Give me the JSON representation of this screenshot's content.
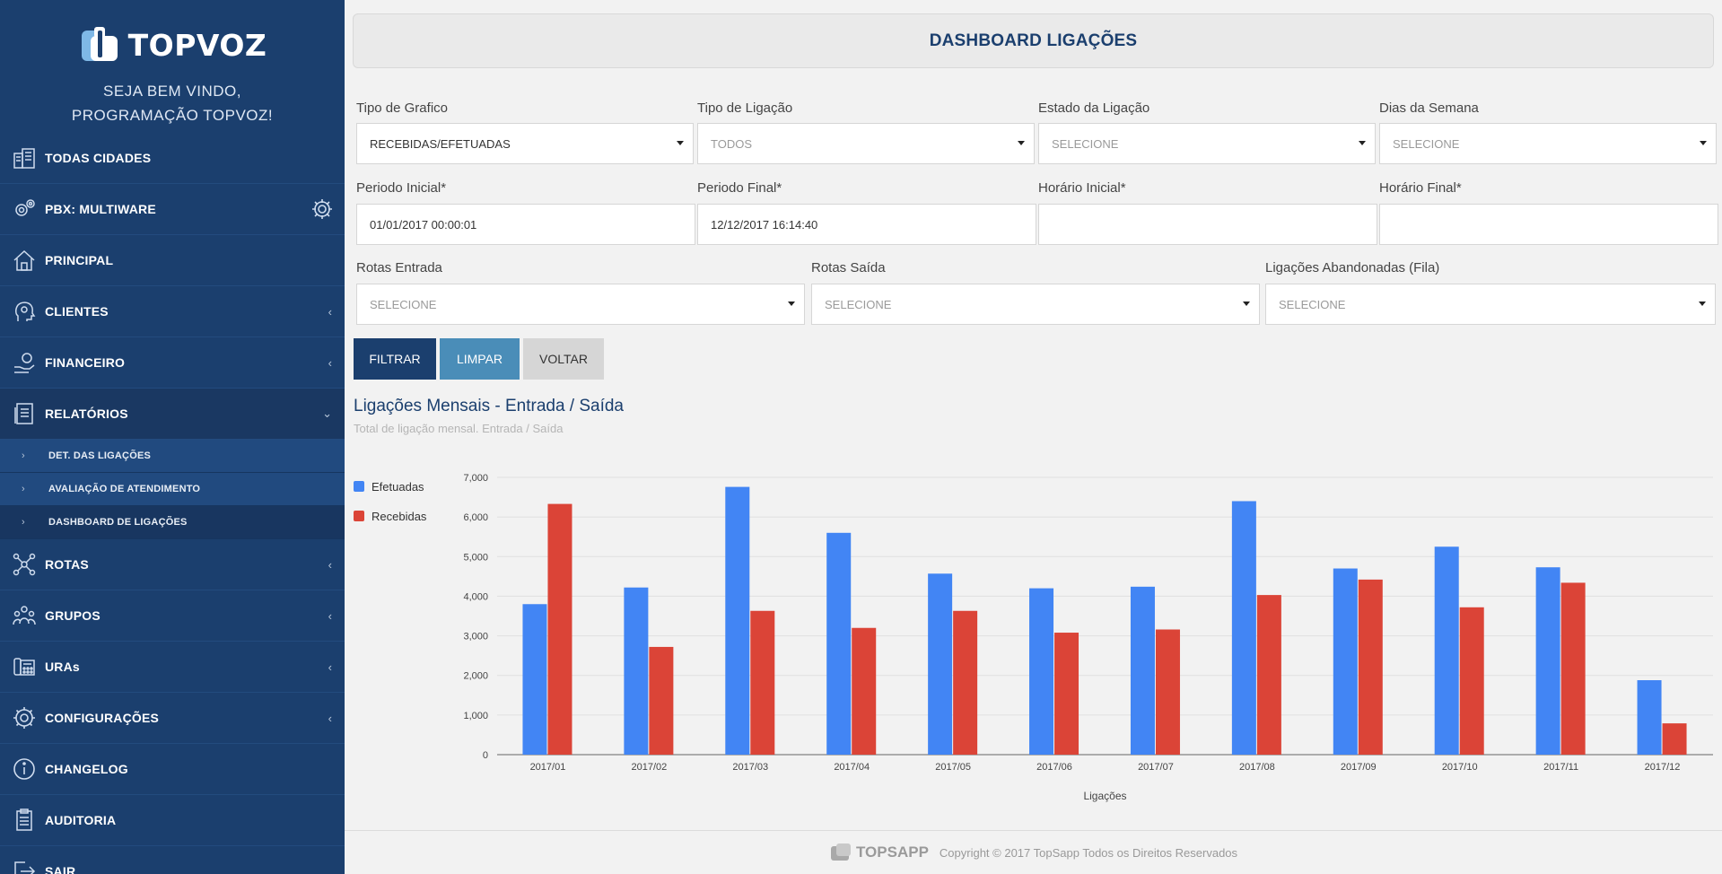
{
  "sidebar": {
    "brand": "TOPVOZ",
    "welcome_line1": "SEJA BEM VINDO,",
    "welcome_line2": "PROGRAMAÇÃO TOPVOZ!",
    "items": [
      {
        "label": "TODAS CIDADES",
        "icon": "city-icon"
      },
      {
        "label": "PBX: MULTIWARE",
        "icon": "gears-icon"
      },
      {
        "label": "PRINCIPAL",
        "icon": "home-icon"
      },
      {
        "label": "CLIENTES",
        "icon": "user-head-icon"
      },
      {
        "label": "FINANCEIRO",
        "icon": "money-hand-icon"
      },
      {
        "label": "RELATÓRIOS",
        "icon": "report-icon"
      },
      {
        "label": "ROTAS",
        "icon": "network-icon"
      },
      {
        "label": "GRUPOS",
        "icon": "group-icon"
      },
      {
        "label": "URAs",
        "icon": "phone-icon"
      },
      {
        "label": "CONFIGURAÇÕES",
        "icon": "gear-icon"
      },
      {
        "label": "CHANGELOG",
        "icon": "info-icon"
      },
      {
        "label": "AUDITORIA",
        "icon": "clipboard-icon"
      },
      {
        "label": "SAIR",
        "icon": "exit-icon"
      }
    ],
    "sub_items": [
      {
        "label": "DET. DAS LIGAÇÕES"
      },
      {
        "label": "AVALIAÇÃO DE ATENDIMENTO"
      },
      {
        "label": "DASHBOARD DE LIGAÇÕES"
      }
    ]
  },
  "header": {
    "title": "DASHBOARD LIGAÇÕES"
  },
  "filters": {
    "tipo_grafico": {
      "label": "Tipo de Grafico",
      "value": "RECEBIDAS/EFETUADAS"
    },
    "tipo_ligacao": {
      "label": "Tipo de Ligação",
      "value": "TODOS"
    },
    "estado_ligacao": {
      "label": "Estado da Ligação",
      "value": "SELECIONE"
    },
    "dias_semana": {
      "label": "Dias da Semana",
      "value": "SELECIONE"
    },
    "periodo_inicial": {
      "label": "Periodo Inicial*",
      "value": "01/01/2017 00:00:01"
    },
    "periodo_final": {
      "label": "Periodo Final*",
      "value": "12/12/2017 16:14:40"
    },
    "horario_inicial": {
      "label": "Horário Inicial*",
      "value": ""
    },
    "horario_final": {
      "label": "Horário Final*",
      "value": ""
    },
    "rotas_entrada": {
      "label": "Rotas Entrada",
      "value": "SELECIONE"
    },
    "rotas_saida": {
      "label": "Rotas Saída",
      "value": "SELECIONE"
    },
    "abandonadas": {
      "label": "Ligações Abandonadas (Fila)",
      "value": "SELECIONE"
    }
  },
  "buttons": {
    "filtrar": "FILTRAR",
    "limpar": "LIMPAR",
    "voltar": "VOLTAR"
  },
  "chart_data": {
    "type": "bar",
    "title": "Ligações Mensais - Entrada / Saída",
    "subtitle": "Total de ligação mensal. Entrada / Saída",
    "xlabel": "Ligações",
    "ylabel": "",
    "ylim": [
      0,
      7000
    ],
    "yticks": [
      "0",
      "1,000",
      "2,000",
      "3,000",
      "4,000",
      "5,000",
      "6,000",
      "7,000"
    ],
    "categories": [
      "2017/01",
      "2017/02",
      "2017/03",
      "2017/04",
      "2017/05",
      "2017/06",
      "2017/07",
      "2017/08",
      "2017/09",
      "2017/10",
      "2017/11",
      "2017/12"
    ],
    "series": [
      {
        "name": "Efetuadas",
        "color": "#4285f4",
        "values": [
          3800,
          4220,
          6760,
          5600,
          4570,
          4200,
          4240,
          6400,
          4700,
          5250,
          4730,
          1880
        ]
      },
      {
        "name": "Recebidas",
        "color": "#db4437",
        "values": [
          6330,
          2720,
          3630,
          3200,
          3630,
          3080,
          3160,
          4030,
          4420,
          3720,
          4340,
          790
        ]
      }
    ],
    "legend": "left",
    "grid": true
  },
  "footer": {
    "brand": "TOPSAPP",
    "copyright": "Copyright © 2017 TopSapp Todos os Direitos Reservados"
  }
}
